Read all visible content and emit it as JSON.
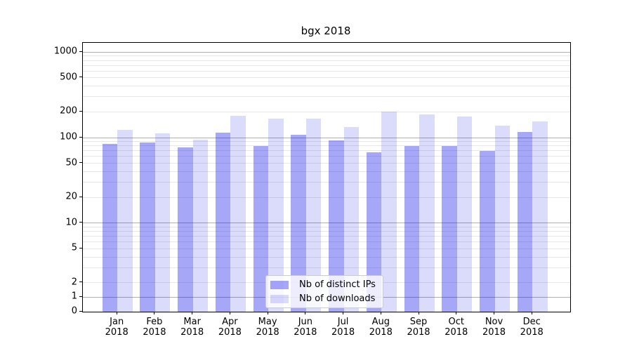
{
  "title": "bgx 2018",
  "chart_data": {
    "type": "bar",
    "title": "bgx 2018",
    "categories": [
      "Jan 2018",
      "Feb 2018",
      "Mar 2018",
      "Apr 2018",
      "May 2018",
      "Jun 2018",
      "Jul 2018",
      "Aug 2018",
      "Sep 2018",
      "Oct 2018",
      "Nov 2018",
      "Dec 2018"
    ],
    "series": [
      {
        "name": "Nb of distinct IPs",
        "color": "#0a0aeb5c",
        "values": [
          85,
          87,
          77,
          115,
          80,
          107,
          93,
          67,
          80,
          79,
          70,
          116
        ]
      },
      {
        "name": "Nb of downloads",
        "color": "#0a0aeb25",
        "values": [
          122,
          112,
          95,
          180,
          166,
          167,
          133,
          203,
          188,
          177,
          139,
          155
        ]
      }
    ],
    "yscale": "symlog",
    "yticks": [
      0,
      1,
      2,
      5,
      10,
      20,
      50,
      100,
      200,
      500,
      1000
    ],
    "ylim": [
      0,
      1276
    ],
    "grid": "major+minor",
    "legend_position": "lower-center",
    "colors": {
      "major_grid": "#b0b0b0",
      "minor_grid": "#e7e7e7",
      "spine": "#000000",
      "text": "#000000"
    }
  }
}
